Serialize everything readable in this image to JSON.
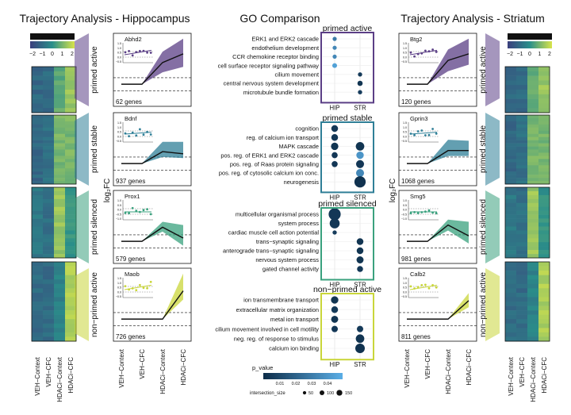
{
  "titles": {
    "left": "Trajectory Analysis - Hippocampus",
    "center": "GO Comparison",
    "right": "Trajectory Analysis - Striatum"
  },
  "legend_zscore": {
    "title": "z−score",
    "ticks": [
      "−2",
      "−1",
      "0",
      "1",
      "2"
    ]
  },
  "colors": {
    "primed_active": "#5b3f86",
    "primed_stable": "#2f7f97",
    "primed_silenced": "#3aa17e",
    "non_primed_active": "#c9d63a",
    "heat_low": "#3b3f7d",
    "heat_mid": "#2a8f8a",
    "heat_high": "#d8e44a",
    "pvalue_low": "#0d2d49",
    "pvalue_high": "#5aaee6"
  },
  "conditions": [
    "VEH−Context",
    "VEH−CFC",
    "HDACi−Context",
    "HDACi−CFC"
  ],
  "ylabel": "log₂FC",
  "clusters": [
    {
      "key": "primed_active",
      "name": "primed active"
    },
    {
      "key": "primed_stable",
      "name": "primed stable"
    },
    {
      "key": "primed_silenced",
      "name": "primed silenced"
    },
    {
      "key": "non_primed_active",
      "name": "non−primed active"
    }
  ],
  "chart_data": [
    {
      "type": "line",
      "title": "Trajectory Analysis - Hippocampus",
      "ylabel": "log₂FC",
      "categories": [
        "VEH−Context",
        "VEH−CFC",
        "HDACi−Context",
        "HDACi−CFC"
      ],
      "ylim": [
        -0.8,
        2.2
      ],
      "thresholds": [
        -0.3,
        0.3
      ],
      "panels": [
        {
          "cluster": "primed active",
          "gene_count": "62 genes",
          "gene": "Abhd2",
          "mean": [
            0,
            0,
            1.0,
            1.4
          ],
          "lower": [
            0,
            0,
            0.55,
            0.8
          ],
          "upper": [
            0,
            0,
            1.5,
            2.1
          ],
          "inset_ticks": [
            "1.5",
            "1.0",
            "0.5",
            "0.0",
            "−0.5"
          ]
        },
        {
          "cluster": "primed stable",
          "gene_count": "937 genes",
          "gene": "Bdnf",
          "mean": [
            0,
            0,
            0.55,
            0.45
          ],
          "lower": [
            0,
            0,
            0.3,
            0.25
          ],
          "upper": [
            0,
            0,
            1.0,
            1.0
          ],
          "inset_ticks": [
            "1.5",
            "1.0",
            "0.5",
            "0.0",
            "−0.5"
          ]
        },
        {
          "cluster": "primed silenced",
          "gene_count": "579 genes",
          "gene": "Prox1",
          "mean": [
            0,
            0,
            0.65,
            0.15
          ],
          "lower": [
            0,
            0,
            0.45,
            -0.2
          ],
          "upper": [
            0,
            0,
            0.9,
            0.75
          ],
          "inset_ticks": [
            "1.0",
            "0.5",
            "0.0",
            "−0.5",
            "−1.0"
          ]
        },
        {
          "cluster": "non−primed active",
          "gene_count": "726 genes",
          "gene": "Maob",
          "mean": [
            0,
            0,
            0,
            1.3
          ],
          "lower": [
            0,
            0,
            0,
            0.9
          ],
          "upper": [
            0,
            0,
            0,
            2.1
          ],
          "inset_ticks": [
            "1.5",
            "1.0",
            "0.5",
            "0.0",
            "−0.5"
          ]
        }
      ]
    },
    {
      "type": "line",
      "title": "Trajectory Analysis - Striatum",
      "ylabel": "log₂FC",
      "categories": [
        "VEH−Context",
        "VEH−CFC",
        "HDACi−Context",
        "HDACi−CFC"
      ],
      "ylim": [
        -0.8,
        2.2
      ],
      "thresholds": [
        -0.3,
        0.3
      ],
      "panels": [
        {
          "cluster": "primed active",
          "gene_count": "120 genes",
          "gene": "Btg2",
          "mean": [
            0,
            0,
            1.1,
            1.4
          ],
          "lower": [
            0,
            0,
            0.6,
            0.9
          ],
          "upper": [
            0,
            0,
            1.6,
            2.1
          ],
          "inset_ticks": [
            "1.5",
            "1.0",
            "0.5",
            "0.0",
            "−0.5"
          ]
        },
        {
          "cluster": "primed stable",
          "gene_count": "1068 genes",
          "gene": "Gprin3",
          "mean": [
            0,
            0,
            0.6,
            0.6
          ],
          "lower": [
            0,
            0,
            0.35,
            0.35
          ],
          "upper": [
            0,
            0,
            1.1,
            1.05
          ],
          "inset_ticks": [
            "1.5",
            "1.0",
            "0.5",
            "0.0",
            "−0.5"
          ]
        },
        {
          "cluster": "primed silenced",
          "gene_count": "981 genes",
          "gene": "Smg5",
          "mean": [
            0,
            0,
            0.75,
            0.25
          ],
          "lower": [
            0,
            0,
            0.5,
            -0.1
          ],
          "upper": [
            0,
            0,
            1.0,
            0.9
          ],
          "inset_ticks": [
            "1.0",
            "0.5",
            "0.0",
            "−0.5",
            "−1.0"
          ]
        },
        {
          "cluster": "non−primed active",
          "gene_count": "811 genes",
          "gene": "Calb2",
          "mean": [
            0,
            0,
            0,
            0.85
          ],
          "lower": [
            0,
            0,
            0,
            0.55
          ],
          "upper": [
            0,
            0,
            0,
            1.2
          ],
          "inset_ticks": [
            "1.5",
            "1.0",
            "0.5",
            "0.0",
            "−0.5"
          ]
        }
      ]
    },
    {
      "type": "scatter",
      "title": "GO Comparison",
      "columns": [
        "HIP",
        "STR"
      ],
      "size_legend_title": "intersection_size",
      "size_legend_values": [
        50,
        100,
        150
      ],
      "color_legend_title": "p_value",
      "color_ticks": [
        "0.01",
        "0.02",
        "0.03",
        "0.04"
      ],
      "color_range": [
        0.001,
        0.05
      ],
      "blocks": [
        {
          "cluster": "primed active",
          "terms": [
            {
              "term": "ERK1 and ERK2 cascade",
              "HIP": {
                "p": 0.03,
                "size": 15
              },
              "STR": null
            },
            {
              "term": "endothelium development",
              "HIP": {
                "p": 0.035,
                "size": 15
              },
              "STR": null
            },
            {
              "term": "CCR chemokine receptor binding",
              "HIP": {
                "p": 0.035,
                "size": 15
              },
              "STR": null
            },
            {
              "term": "cell surface receptor signaling pathway",
              "HIP": {
                "p": 0.045,
                "size": 25
              },
              "STR": null
            },
            {
              "term": "cilium movement",
              "HIP": null,
              "STR": {
                "p": 0.005,
                "size": 20
              }
            },
            {
              "term": "central nervous system development",
              "HIP": null,
              "STR": {
                "p": 0.003,
                "size": 30
              }
            },
            {
              "term": "microtubule bundle formation",
              "HIP": null,
              "STR": {
                "p": 0.006,
                "size": 20
              }
            }
          ]
        },
        {
          "cluster": "primed stable",
          "terms": [
            {
              "term": "cognition",
              "HIP": {
                "p": 0.004,
                "size": 50
              },
              "STR": null
            },
            {
              "term": "reg. of calcium ion transport",
              "HIP": {
                "p": 0.004,
                "size": 50
              },
              "STR": null
            },
            {
              "term": "MAPK cascade",
              "HIP": {
                "p": 0.003,
                "size": 60
              },
              "STR": {
                "p": 0.003,
                "size": 80
              }
            },
            {
              "term": "pos. reg. of ERK1 and ERK2 cascade",
              "HIP": {
                "p": 0.004,
                "size": 40
              },
              "STR": {
                "p": 0.04,
                "size": 60
              }
            },
            {
              "term": "pos. reg. of Raas protein signaling",
              "HIP": {
                "p": 0.004,
                "size": 40
              },
              "STR": {
                "p": 0.004,
                "size": 70
              }
            },
            {
              "term": "pos. reg. of cytosolic calcium ion conc.",
              "HIP": null,
              "STR": {
                "p": 0.035,
                "size": 70
              }
            },
            {
              "term": "neurogenesis",
              "HIP": null,
              "STR": {
                "p": 0.002,
                "size": 140
              }
            }
          ]
        },
        {
          "cluster": "primed silenced",
          "terms": [
            {
              "term": "multicellular organismal process",
              "HIP": {
                "p": 0.004,
                "size": 160
              },
              "STR": null
            },
            {
              "term": "system process",
              "HIP": {
                "p": 0.004,
                "size": 110
              },
              "STR": null
            },
            {
              "term": "cardiac muscle cell action potential",
              "HIP": {
                "p": 0.006,
                "size": 20
              },
              "STR": null
            },
            {
              "term": "trans−synaptic signaling",
              "HIP": null,
              "STR": {
                "p": 0.003,
                "size": 50
              }
            },
            {
              "term": "anterograde trans−synaptic signaling",
              "HIP": null,
              "STR": {
                "p": 0.003,
                "size": 50
              }
            },
            {
              "term": "nervous system process",
              "HIP": null,
              "STR": {
                "p": 0.003,
                "size": 55
              }
            },
            {
              "term": "gated channel activity",
              "HIP": null,
              "STR": {
                "p": 0.004,
                "size": 40
              }
            }
          ]
        },
        {
          "cluster": "non−primed active",
          "terms": [
            {
              "term": "ion transmembrane transport",
              "HIP": {
                "p": 0.003,
                "size": 60
              },
              "STR": null
            },
            {
              "term": "extracellular matrix organization",
              "HIP": {
                "p": 0.005,
                "size": 50
              },
              "STR": null
            },
            {
              "term": "metal ion transport",
              "HIP": {
                "p": 0.003,
                "size": 55
              },
              "STR": null
            },
            {
              "term": "cilium movement involved in cell motility",
              "HIP": {
                "p": 0.004,
                "size": 45
              },
              "STR": {
                "p": 0.005,
                "size": 45
              }
            },
            {
              "term": "neg. reg. of response to stimulus",
              "HIP": null,
              "STR": {
                "p": 0.003,
                "size": 80
              }
            },
            {
              "term": "calcium ion binding",
              "HIP": null,
              "STR": {
                "p": 0.002,
                "size": 100
              }
            }
          ]
        }
      ]
    },
    {
      "type": "heatmap",
      "title": "Trajectory Analysis - Hippocampus",
      "columns": [
        "VEH−Context",
        "VEH−CFC",
        "HDACi−Context",
        "HDACi−CFC"
      ],
      "zlim": [
        -2,
        2
      ],
      "cluster_means": [
        [
          -1.0,
          -0.9,
          0.6,
          1.3
        ],
        [
          -1.0,
          -0.8,
          0.9,
          0.9
        ],
        [
          -0.6,
          -0.8,
          1.3,
          0.1
        ],
        [
          -0.9,
          -0.9,
          -0.3,
          1.5
        ]
      ]
    },
    {
      "type": "heatmap",
      "title": "Trajectory Analysis - Striatum",
      "columns": [
        "VEH−Context",
        "VEH−CFC",
        "HDACi−Context",
        "HDACi−CFC"
      ],
      "zlim": [
        -2,
        2
      ],
      "cluster_means": [
        [
          -1.0,
          -0.9,
          0.6,
          1.3
        ],
        [
          -1.0,
          -0.8,
          0.9,
          0.9
        ],
        [
          -0.6,
          -0.8,
          1.3,
          0.1
        ],
        [
          -0.9,
          -0.9,
          -0.3,
          1.5
        ]
      ]
    }
  ]
}
